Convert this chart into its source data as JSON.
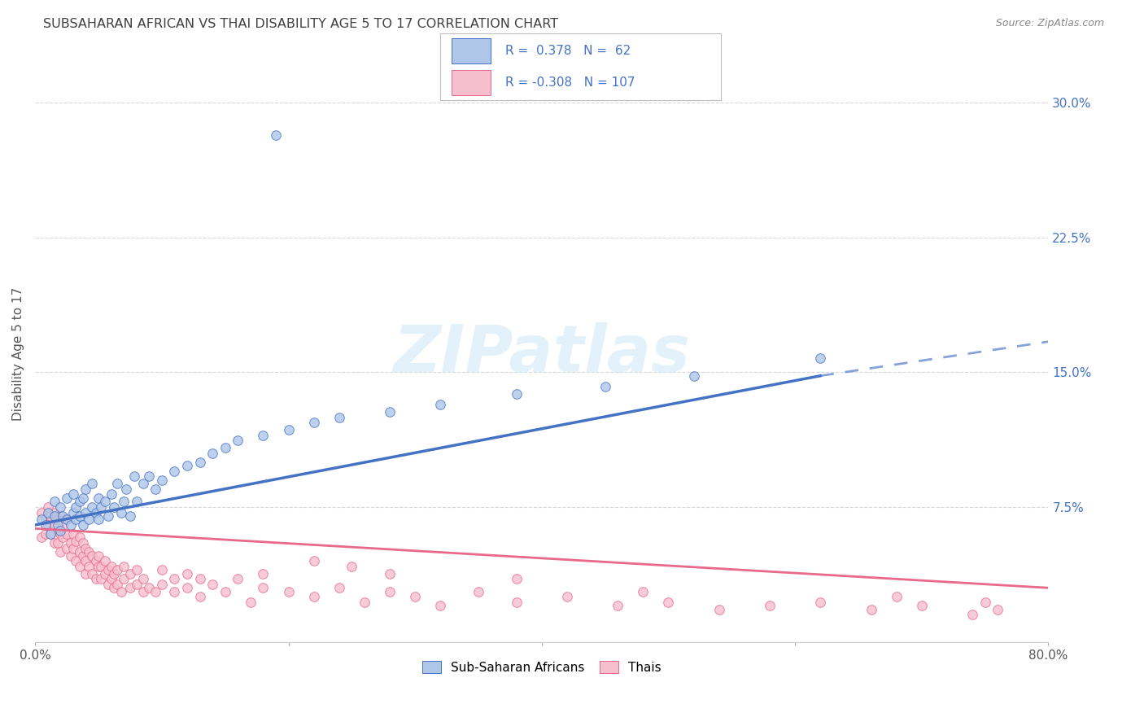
{
  "title": "SUBSAHARAN AFRICAN VS THAI DISABILITY AGE 5 TO 17 CORRELATION CHART",
  "source": "Source: ZipAtlas.com",
  "ylabel": "Disability Age 5 to 17",
  "xlim": [
    0.0,
    0.8
  ],
  "ylim": [
    0.0,
    0.32
  ],
  "xticks": [
    0.0,
    0.2,
    0.4,
    0.6,
    0.8
  ],
  "xtick_labels": [
    "0.0%",
    "",
    "",
    "",
    "80.0%"
  ],
  "yticks": [
    0.0,
    0.075,
    0.15,
    0.225,
    0.3
  ],
  "ytick_labels": [
    "",
    "7.5%",
    "15.0%",
    "22.5%",
    "30.0%"
  ],
  "blue_R": 0.378,
  "blue_N": 62,
  "pink_R": -0.308,
  "pink_N": 107,
  "blue_color": "#aec6e8",
  "blue_line_color": "#4472c4",
  "blue_edge_color": "#4472c4",
  "pink_color": "#f5bfce",
  "pink_line_color": "#e8698a",
  "pink_edge_color": "#e8698a",
  "background_color": "#ffffff",
  "grid_color": "#d8d8d8",
  "title_color": "#404040",
  "watermark_color": "#d0e8f8",
  "blue_scatter_x": [
    0.005,
    0.008,
    0.01,
    0.012,
    0.015,
    0.015,
    0.018,
    0.02,
    0.02,
    0.022,
    0.025,
    0.025,
    0.028,
    0.03,
    0.03,
    0.032,
    0.032,
    0.035,
    0.035,
    0.038,
    0.038,
    0.04,
    0.04,
    0.042,
    0.045,
    0.045,
    0.048,
    0.05,
    0.05,
    0.052,
    0.055,
    0.058,
    0.06,
    0.062,
    0.065,
    0.068,
    0.07,
    0.072,
    0.075,
    0.078,
    0.08,
    0.085,
    0.09,
    0.095,
    0.1,
    0.11,
    0.12,
    0.13,
    0.14,
    0.15,
    0.16,
    0.18,
    0.2,
    0.22,
    0.24,
    0.28,
    0.32,
    0.38,
    0.45,
    0.52,
    0.19,
    0.62
  ],
  "blue_scatter_y": [
    0.068,
    0.065,
    0.072,
    0.06,
    0.07,
    0.078,
    0.065,
    0.062,
    0.075,
    0.07,
    0.068,
    0.08,
    0.065,
    0.072,
    0.082,
    0.068,
    0.075,
    0.07,
    0.078,
    0.065,
    0.08,
    0.072,
    0.085,
    0.068,
    0.075,
    0.088,
    0.072,
    0.068,
    0.08,
    0.075,
    0.078,
    0.07,
    0.082,
    0.075,
    0.088,
    0.072,
    0.078,
    0.085,
    0.07,
    0.092,
    0.078,
    0.088,
    0.092,
    0.085,
    0.09,
    0.095,
    0.098,
    0.1,
    0.105,
    0.108,
    0.112,
    0.115,
    0.118,
    0.122,
    0.125,
    0.128,
    0.132,
    0.138,
    0.142,
    0.148,
    0.282,
    0.158
  ],
  "pink_scatter_x": [
    0.005,
    0.005,
    0.008,
    0.008,
    0.01,
    0.01,
    0.012,
    0.012,
    0.015,
    0.015,
    0.015,
    0.018,
    0.018,
    0.018,
    0.02,
    0.02,
    0.02,
    0.022,
    0.022,
    0.025,
    0.025,
    0.025,
    0.028,
    0.028,
    0.03,
    0.03,
    0.032,
    0.032,
    0.035,
    0.035,
    0.035,
    0.038,
    0.038,
    0.04,
    0.04,
    0.04,
    0.042,
    0.042,
    0.045,
    0.045,
    0.048,
    0.048,
    0.05,
    0.05,
    0.052,
    0.052,
    0.055,
    0.055,
    0.058,
    0.058,
    0.06,
    0.06,
    0.062,
    0.062,
    0.065,
    0.065,
    0.068,
    0.07,
    0.07,
    0.075,
    0.075,
    0.08,
    0.08,
    0.085,
    0.085,
    0.09,
    0.095,
    0.1,
    0.1,
    0.11,
    0.11,
    0.12,
    0.12,
    0.13,
    0.14,
    0.15,
    0.16,
    0.17,
    0.18,
    0.2,
    0.22,
    0.24,
    0.26,
    0.28,
    0.3,
    0.32,
    0.35,
    0.38,
    0.42,
    0.46,
    0.5,
    0.54,
    0.58,
    0.62,
    0.66,
    0.7,
    0.74,
    0.76,
    0.75,
    0.68,
    0.48,
    0.38,
    0.28,
    0.25,
    0.22,
    0.18,
    0.13
  ],
  "pink_scatter_y": [
    0.072,
    0.058,
    0.068,
    0.06,
    0.065,
    0.075,
    0.06,
    0.07,
    0.055,
    0.065,
    0.072,
    0.062,
    0.068,
    0.055,
    0.06,
    0.07,
    0.05,
    0.065,
    0.058,
    0.06,
    0.052,
    0.068,
    0.055,
    0.048,
    0.06,
    0.052,
    0.056,
    0.045,
    0.058,
    0.05,
    0.042,
    0.055,
    0.048,
    0.052,
    0.045,
    0.038,
    0.05,
    0.042,
    0.048,
    0.038,
    0.045,
    0.035,
    0.042,
    0.048,
    0.035,
    0.042,
    0.038,
    0.045,
    0.032,
    0.04,
    0.035,
    0.042,
    0.03,
    0.038,
    0.032,
    0.04,
    0.028,
    0.035,
    0.042,
    0.03,
    0.038,
    0.032,
    0.04,
    0.028,
    0.035,
    0.03,
    0.028,
    0.032,
    0.04,
    0.028,
    0.035,
    0.03,
    0.038,
    0.025,
    0.032,
    0.028,
    0.035,
    0.022,
    0.03,
    0.028,
    0.025,
    0.03,
    0.022,
    0.028,
    0.025,
    0.02,
    0.028,
    0.022,
    0.025,
    0.02,
    0.022,
    0.018,
    0.02,
    0.022,
    0.018,
    0.02,
    0.015,
    0.018,
    0.022,
    0.025,
    0.028,
    0.035,
    0.038,
    0.042,
    0.045,
    0.038,
    0.035
  ],
  "blue_line_start_x": 0.0,
  "blue_line_start_y": 0.065,
  "blue_line_solid_end_x": 0.62,
  "blue_line_solid_end_y": 0.148,
  "blue_line_dash_end_x": 0.8,
  "blue_line_dash_end_y": 0.167,
  "pink_line_start_x": 0.0,
  "pink_line_start_y": 0.063,
  "pink_line_end_x": 0.8,
  "pink_line_end_y": 0.03,
  "legend_title_color": "#4472c4",
  "legend_border_color": "#c0c0c0"
}
